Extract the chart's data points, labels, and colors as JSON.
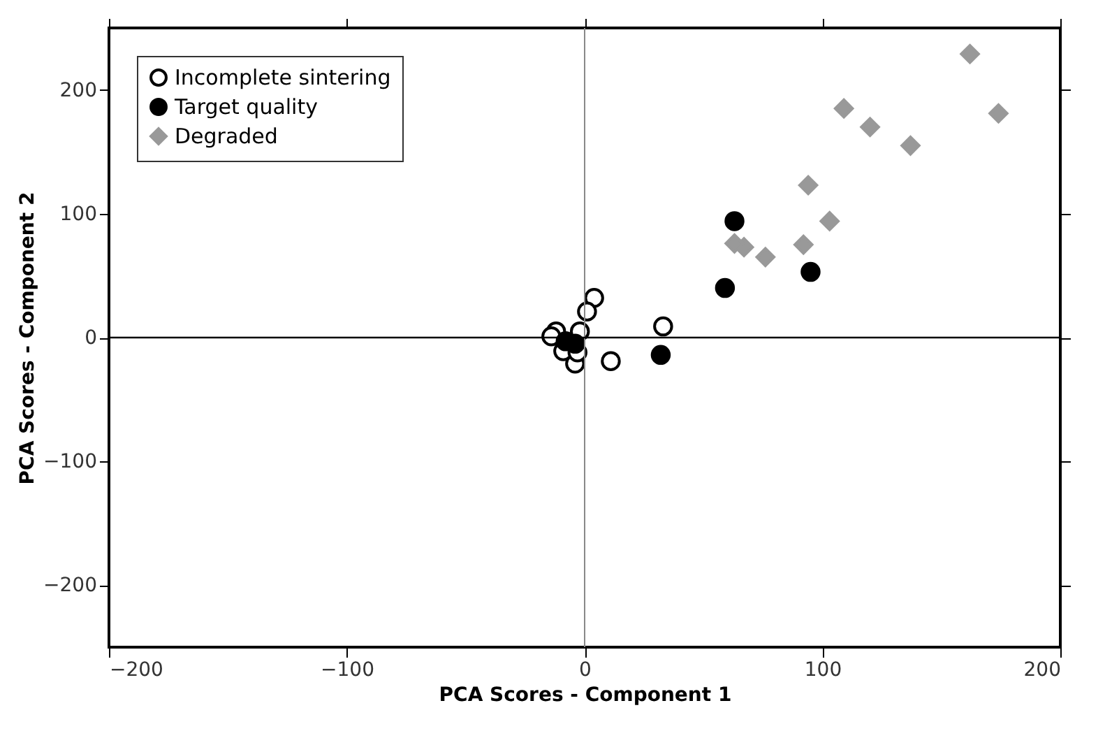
{
  "chart_data": {
    "type": "scatter",
    "xlabel": "PCA Scores - Component 1",
    "ylabel": "PCA Scores - Component 2",
    "xlim": [
      -200,
      200
    ],
    "ylim": [
      -250,
      250
    ],
    "xticks": [
      -200,
      -100,
      0,
      100,
      200
    ],
    "yticks": [
      -200,
      -100,
      0,
      100,
      200
    ],
    "grid": false,
    "legend": "top left",
    "ref_lines": [
      {
        "axis": "x",
        "value": 0,
        "color": "#888888"
      },
      {
        "axis": "y",
        "value": 0,
        "color": "#000000"
      }
    ],
    "series": [
      {
        "name": "Incomplete sintering",
        "color": "#ffffff",
        "marker": "circle",
        "x": [
          4,
          1,
          33,
          11,
          -12,
          -14,
          -2,
          -9,
          -4,
          -3
        ],
        "values": [
          32,
          21,
          9,
          -19,
          5,
          1,
          5,
          -11,
          -21,
          -12
        ]
      },
      {
        "name": "Target quality",
        "color": "#000000",
        "marker": "circle",
        "x": [
          63,
          95,
          59,
          32,
          -8,
          -4
        ],
        "values": [
          94,
          53,
          40,
          -14,
          -3,
          -5
        ]
      },
      {
        "name": "Degraded",
        "color": "#999999",
        "marker": "diamond",
        "x": [
          162,
          174,
          109,
          120,
          137,
          94,
          103,
          92,
          76,
          67,
          63
        ],
        "values": [
          229,
          181,
          185,
          170,
          155,
          123,
          94,
          75,
          65,
          73,
          76
        ]
      }
    ]
  }
}
